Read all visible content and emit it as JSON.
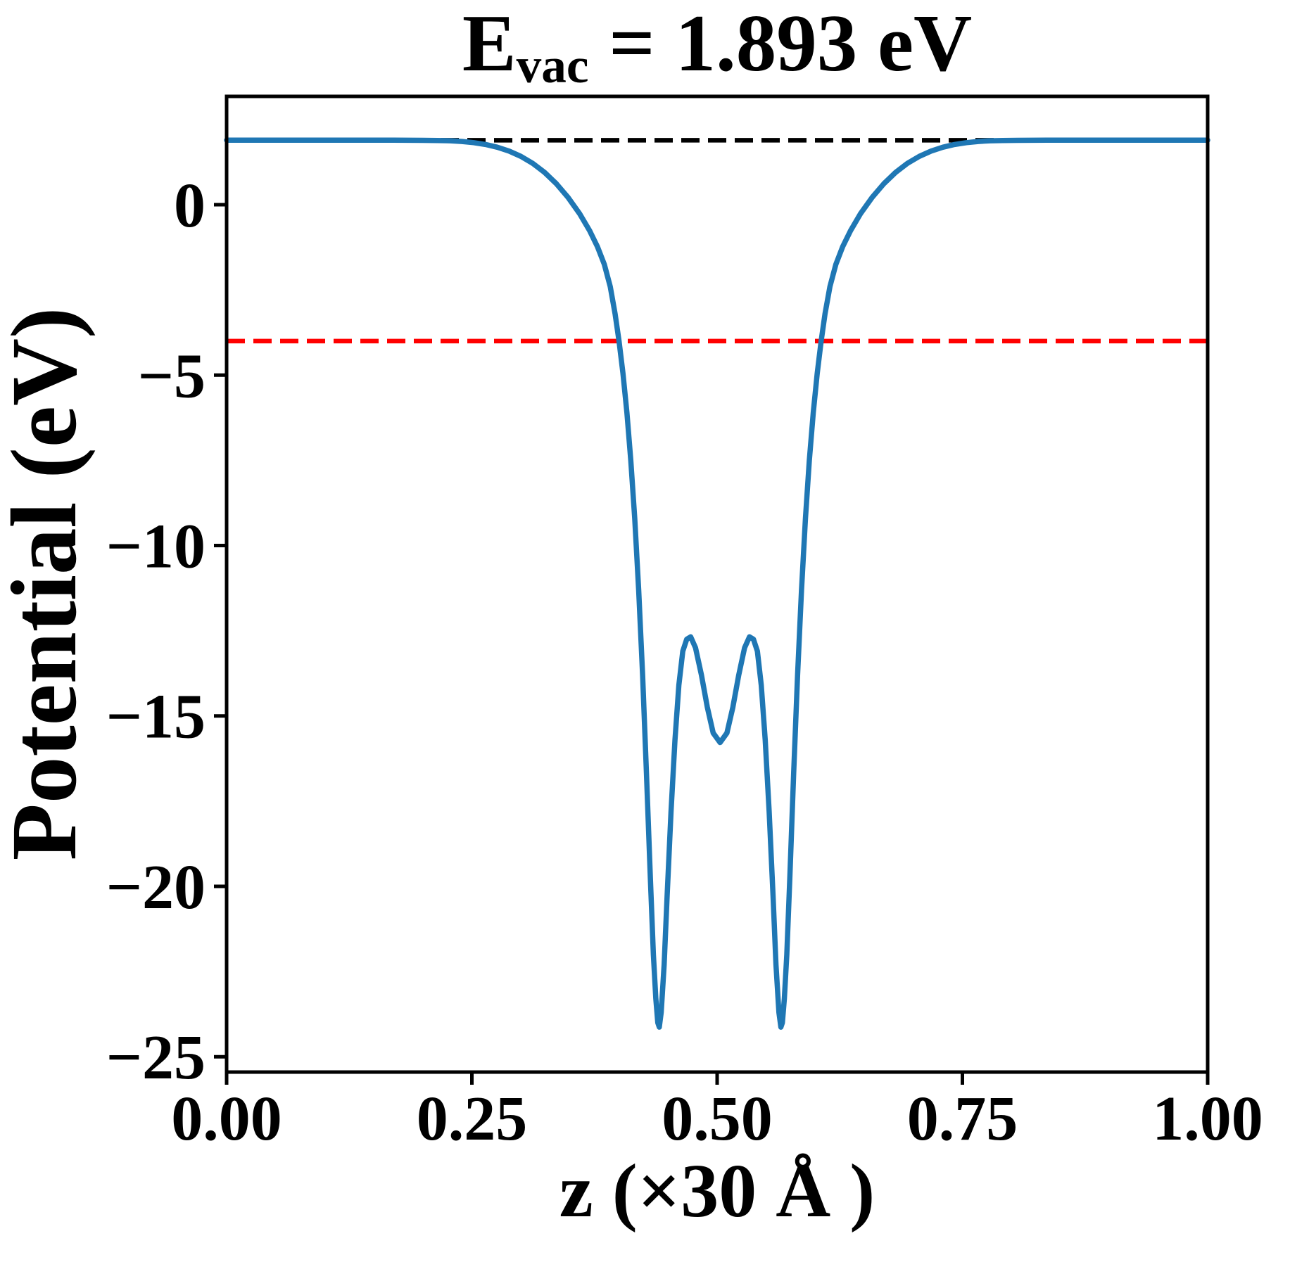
{
  "figure": {
    "title": {
      "symbol": "E",
      "subscript": "vac",
      "rest": " = 1.893 eV"
    },
    "xlabel": "z (×30 Å )",
    "ylabel": "Potential (eV)"
  },
  "chart_data": {
    "type": "line",
    "title": "E_vac = 1.893 eV",
    "xlabel": "z (×30 Å )",
    "ylabel": "Potential (eV)",
    "xlim": [
      0.0,
      1.0
    ],
    "ylim": [
      -25.45,
      3.18
    ],
    "grid": false,
    "legend_position": "none",
    "xticks": {
      "values": [
        0.0,
        0.25,
        0.5,
        0.75,
        1.0
      ],
      "labels": [
        "0.00",
        "0.25",
        "0.50",
        "0.75",
        "1.00"
      ]
    },
    "yticks": {
      "values": [
        0,
        -5,
        -10,
        -15,
        -20,
        -25
      ],
      "labels": [
        "0",
        "−5",
        "−10",
        "−15",
        "−20",
        "−25"
      ]
    },
    "annotations": {
      "vacuum_energy_eV": 1.893
    },
    "colors": {
      "curve": "#1f77b4",
      "vacuum_level": "#000000",
      "fermi_level": "#ff0000",
      "axes": "#000000"
    },
    "series": [
      {
        "name": "planar-averaged-potential",
        "kind": "curve",
        "color": "#1f77b4",
        "linestyle": "solid",
        "points": [
          [
            0.0,
            1.893
          ],
          [
            0.06,
            1.893
          ],
          [
            0.12,
            1.893
          ],
          [
            0.17,
            1.893
          ],
          [
            0.2,
            1.89
          ],
          [
            0.215,
            1.886
          ],
          [
            0.228,
            1.878
          ],
          [
            0.24,
            1.856
          ],
          [
            0.252,
            1.822
          ],
          [
            0.264,
            1.768
          ],
          [
            0.276,
            1.688
          ],
          [
            0.288,
            1.575
          ],
          [
            0.3,
            1.42
          ],
          [
            0.312,
            1.215
          ],
          [
            0.324,
            0.95
          ],
          [
            0.336,
            0.62
          ],
          [
            0.348,
            0.215
          ],
          [
            0.36,
            -0.27
          ],
          [
            0.37,
            -0.76
          ],
          [
            0.378,
            -1.23
          ],
          [
            0.385,
            -1.75
          ],
          [
            0.391,
            -2.4
          ],
          [
            0.396,
            -3.2
          ],
          [
            0.4,
            -4.0
          ],
          [
            0.404,
            -4.95
          ],
          [
            0.408,
            -6.1
          ],
          [
            0.412,
            -7.5
          ],
          [
            0.416,
            -9.2
          ],
          [
            0.42,
            -11.3
          ],
          [
            0.424,
            -13.8
          ],
          [
            0.428,
            -16.7
          ],
          [
            0.432,
            -19.8
          ],
          [
            0.435,
            -22.0
          ],
          [
            0.4375,
            -23.3
          ],
          [
            0.4395,
            -24.0
          ],
          [
            0.441,
            -24.13
          ],
          [
            0.443,
            -23.7
          ],
          [
            0.446,
            -22.3
          ],
          [
            0.449,
            -20.3
          ],
          [
            0.453,
            -17.8
          ],
          [
            0.457,
            -15.7
          ],
          [
            0.461,
            -14.1
          ],
          [
            0.465,
            -13.1
          ],
          [
            0.469,
            -12.75
          ],
          [
            0.473,
            -12.68
          ],
          [
            0.478,
            -13.0
          ],
          [
            0.484,
            -13.8
          ],
          [
            0.49,
            -14.75
          ],
          [
            0.496,
            -15.5
          ],
          [
            0.503,
            -15.78
          ],
          [
            0.51,
            -15.5
          ],
          [
            0.516,
            -14.75
          ],
          [
            0.522,
            -13.8
          ],
          [
            0.528,
            -13.0
          ],
          [
            0.533,
            -12.68
          ],
          [
            0.537,
            -12.75
          ],
          [
            0.541,
            -13.1
          ],
          [
            0.545,
            -14.1
          ],
          [
            0.549,
            -15.7
          ],
          [
            0.553,
            -17.8
          ],
          [
            0.557,
            -20.3
          ],
          [
            0.56,
            -22.3
          ],
          [
            0.563,
            -23.7
          ],
          [
            0.565,
            -24.13
          ],
          [
            0.5665,
            -24.0
          ],
          [
            0.5685,
            -23.3
          ],
          [
            0.571,
            -22.0
          ],
          [
            0.574,
            -19.8
          ],
          [
            0.578,
            -16.7
          ],
          [
            0.582,
            -13.8
          ],
          [
            0.586,
            -11.3
          ],
          [
            0.59,
            -9.2
          ],
          [
            0.594,
            -7.5
          ],
          [
            0.598,
            -6.1
          ],
          [
            0.602,
            -4.95
          ],
          [
            0.606,
            -4.0
          ],
          [
            0.61,
            -3.2
          ],
          [
            0.615,
            -2.4
          ],
          [
            0.621,
            -1.75
          ],
          [
            0.628,
            -1.23
          ],
          [
            0.636,
            -0.76
          ],
          [
            0.646,
            -0.27
          ],
          [
            0.658,
            0.215
          ],
          [
            0.67,
            0.62
          ],
          [
            0.682,
            0.95
          ],
          [
            0.694,
            1.215
          ],
          [
            0.706,
            1.42
          ],
          [
            0.718,
            1.575
          ],
          [
            0.73,
            1.688
          ],
          [
            0.742,
            1.768
          ],
          [
            0.754,
            1.822
          ],
          [
            0.766,
            1.856
          ],
          [
            0.778,
            1.878
          ],
          [
            0.791,
            1.886
          ],
          [
            0.806,
            1.89
          ],
          [
            0.836,
            1.893
          ],
          [
            0.9,
            1.893
          ],
          [
            0.95,
            1.893
          ],
          [
            1.0,
            1.893
          ]
        ]
      },
      {
        "name": "vacuum-level",
        "kind": "hline",
        "color": "#000000",
        "linestyle": "dashed",
        "y": 1.893
      },
      {
        "name": "fermi-level",
        "kind": "hline",
        "color": "#ff0000",
        "linestyle": "dashed",
        "y": -4.0
      }
    ]
  }
}
